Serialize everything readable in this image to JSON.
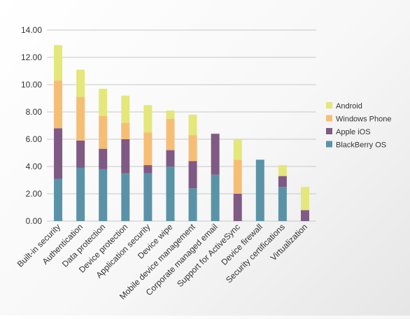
{
  "chart_data": {
    "type": "bar",
    "stacked": true,
    "categories": [
      "Built-in security",
      "Authentication",
      "Data protection",
      "Device protection",
      "Application security",
      "Device wipe",
      "Mobile device management",
      "Corporate managed email",
      "Support for ActiveSync",
      "Device firewall",
      "Security certifications",
      "Virtualization"
    ],
    "series": [
      {
        "name": "BlackBerry OS",
        "color": "#5a93a8",
        "values": [
          3.1,
          3.9,
          3.8,
          3.5,
          3.5,
          4.0,
          2.4,
          3.4,
          0.0,
          4.5,
          2.5,
          0.0
        ]
      },
      {
        "name": "Apple iOS",
        "color": "#7f5a84",
        "values": [
          3.7,
          2.0,
          1.5,
          2.5,
          0.6,
          1.2,
          2.0,
          3.0,
          2.0,
          0.0,
          0.8,
          0.8
        ]
      },
      {
        "name": "Windows Phone",
        "color": "#f6be75",
        "values": [
          3.5,
          3.2,
          2.4,
          1.2,
          2.4,
          2.3,
          1.9,
          0.0,
          2.5,
          0.0,
          0.0,
          0.0
        ]
      },
      {
        "name": "Android",
        "color": "#e4e77a",
        "values": [
          2.6,
          2.0,
          2.0,
          2.0,
          2.0,
          0.6,
          1.5,
          0.0,
          1.5,
          0.0,
          0.8,
          1.7
        ]
      }
    ],
    "ylim": [
      0,
      14
    ],
    "yticks": [
      "0.00",
      "2.00",
      "4.00",
      "6.00",
      "8.00",
      "10.00",
      "12.00",
      "14.00"
    ],
    "grid": true,
    "legend_position": "right",
    "legend_order": [
      "Android",
      "Windows Phone",
      "Apple iOS",
      "BlackBerry OS"
    ],
    "xlabel": "",
    "ylabel": "",
    "title": ""
  }
}
